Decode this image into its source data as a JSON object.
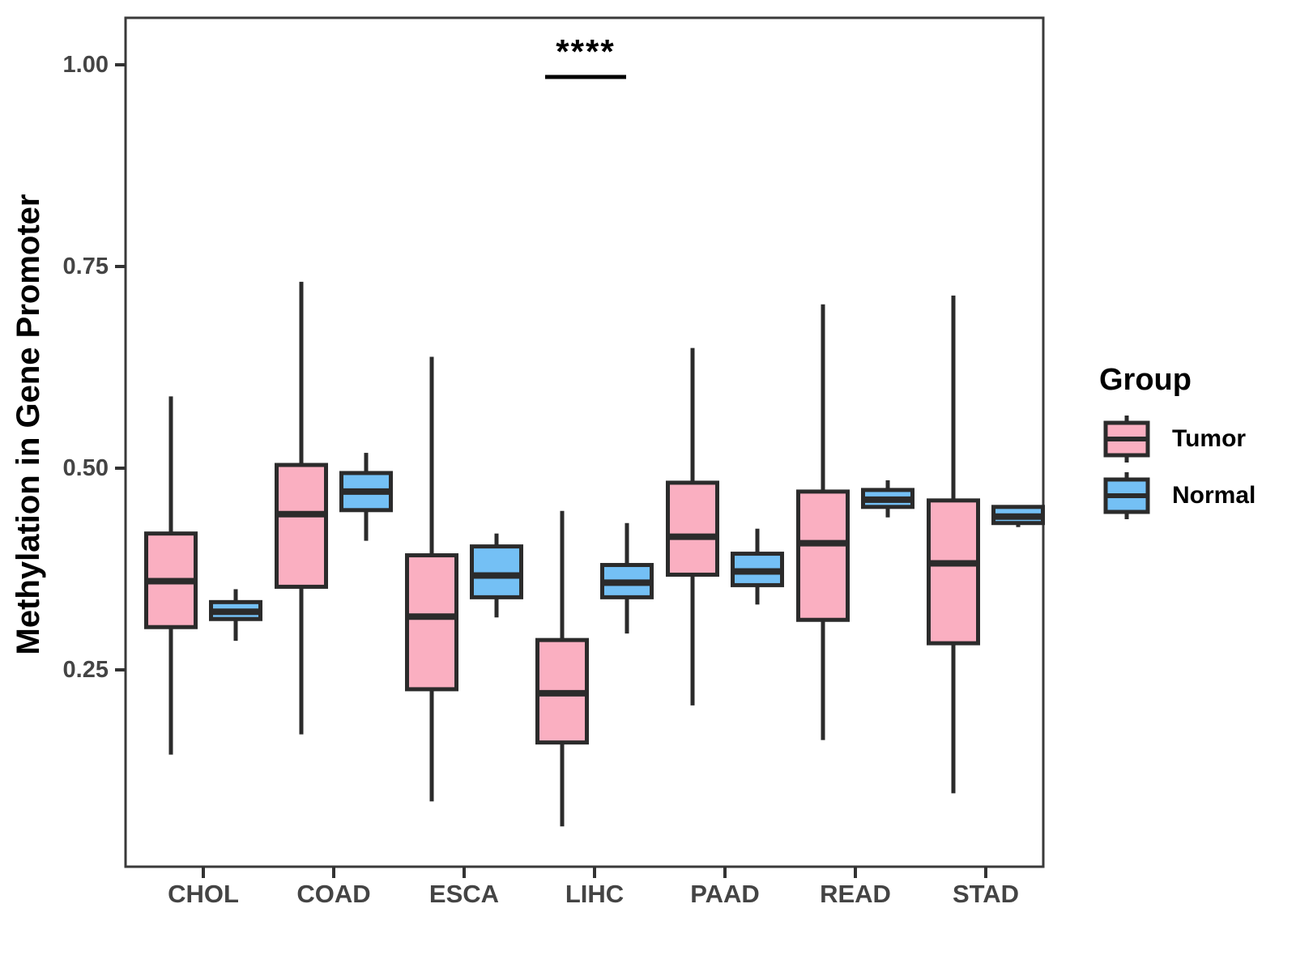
{
  "figure_title": "",
  "chart_data": {
    "type": "boxplot",
    "title": "",
    "xlabel": "",
    "ylabel": "Methylation in Gene Promoter",
    "categories": [
      "CHOL",
      "COAD",
      "ESCA",
      "LIHC",
      "PAAD",
      "READ",
      "STAD"
    ],
    "y_ticks": [
      1.0,
      0.75,
      0.5,
      0.25
    ],
    "y_tick_labels": [
      "1.00",
      "0.75",
      "0.50",
      "0.25"
    ],
    "ylim": [
      0.0,
      1.06
    ],
    "grid": false,
    "legend": {
      "title": "Group",
      "position": "right",
      "entries": [
        {
          "label": "Tumor",
          "color": "#FAAFC1"
        },
        {
          "label": "Normal",
          "color": "#74C0F5"
        }
      ]
    },
    "colors": {
      "tumor_fill": "#FAAFC1",
      "normal_fill": "#74C0F5",
      "box_stroke": "#2B2B2B",
      "panel_border": "#3A3A3A",
      "tick_text": "#444444"
    },
    "series": [
      {
        "name": "Tumor",
        "color": "#FAAFC1",
        "boxes": [
          {
            "category": "CHOL",
            "lo": 0.145,
            "q1": 0.303,
            "med": 0.36,
            "q3": 0.419,
            "hi": 0.589
          },
          {
            "category": "COAD",
            "lo": 0.17,
            "q1": 0.353,
            "med": 0.443,
            "q3": 0.504,
            "hi": 0.731
          },
          {
            "category": "ESCA",
            "lo": 0.087,
            "q1": 0.226,
            "med": 0.316,
            "q3": 0.392,
            "hi": 0.638
          },
          {
            "category": "LIHC",
            "lo": 0.056,
            "q1": 0.16,
            "med": 0.221,
            "q3": 0.287,
            "hi": 0.447
          },
          {
            "category": "PAAD",
            "lo": 0.206,
            "q1": 0.368,
            "med": 0.415,
            "q3": 0.482,
            "hi": 0.649
          },
          {
            "category": "READ",
            "lo": 0.163,
            "q1": 0.312,
            "med": 0.407,
            "q3": 0.471,
            "hi": 0.703
          },
          {
            "category": "STAD",
            "lo": 0.097,
            "q1": 0.283,
            "med": 0.382,
            "q3": 0.46,
            "hi": 0.714
          }
        ]
      },
      {
        "name": "Normal",
        "color": "#74C0F5",
        "boxes": [
          {
            "category": "CHOL",
            "lo": 0.286,
            "q1": 0.313,
            "med": 0.322,
            "q3": 0.334,
            "hi": 0.35
          },
          {
            "category": "COAD",
            "lo": 0.41,
            "q1": 0.448,
            "med": 0.471,
            "q3": 0.494,
            "hi": 0.519
          },
          {
            "category": "ESCA",
            "lo": 0.315,
            "q1": 0.34,
            "med": 0.367,
            "q3": 0.403,
            "hi": 0.419
          },
          {
            "category": "LIHC",
            "lo": 0.295,
            "q1": 0.34,
            "med": 0.358,
            "q3": 0.38,
            "hi": 0.432
          },
          {
            "category": "PAAD",
            "lo": 0.331,
            "q1": 0.355,
            "med": 0.372,
            "q3": 0.394,
            "hi": 0.425
          },
          {
            "category": "READ",
            "lo": 0.439,
            "q1": 0.452,
            "med": 0.461,
            "q3": 0.473,
            "hi": 0.485
          },
          {
            "category": "STAD",
            "lo": 0.427,
            "q1": 0.432,
            "med": 0.44,
            "q3": 0.452,
            "hi": 0.454
          }
        ]
      }
    ],
    "annotations": [
      {
        "type": "significance",
        "label": "****",
        "category": "LIHC",
        "bar_y": 0.985
      }
    ]
  }
}
